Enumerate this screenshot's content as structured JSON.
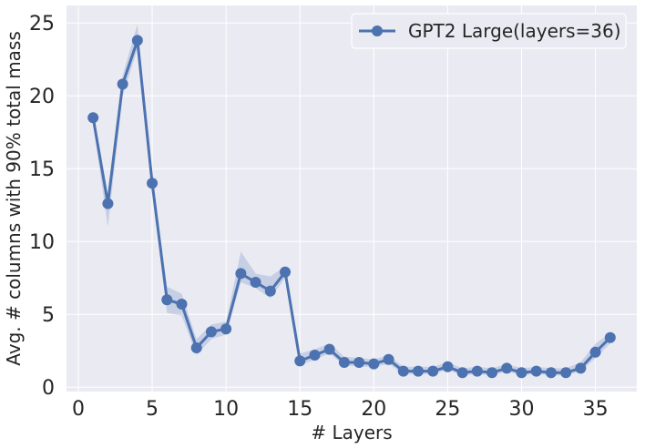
{
  "chart_data": {
    "type": "line",
    "title": "",
    "xlabel": "# Layers",
    "ylabel": "Avg. # columns with 90% total mass",
    "xlim": [
      -0.8,
      37.8
    ],
    "ylim": [
      -0.3,
      26.2
    ],
    "xticks": [
      "0",
      "5",
      "10",
      "15",
      "20",
      "25",
      "30",
      "35"
    ],
    "xtick_values": [
      0,
      5,
      10,
      15,
      20,
      25,
      30,
      35
    ],
    "yticks": [
      "0",
      "5",
      "10",
      "15",
      "20",
      "25"
    ],
    "ytick_values": [
      0,
      5,
      10,
      15,
      20,
      25
    ],
    "grid": true,
    "legend_position": "top-right",
    "background_color": "#eaeaf2",
    "series": [
      {
        "name": "GPT2 Large(layers=36)",
        "color": "#4c72b0",
        "band_color": "#4c72b0",
        "x": [
          1,
          2,
          3,
          4,
          5,
          6,
          7,
          8,
          9,
          10,
          11,
          12,
          13,
          14,
          15,
          16,
          17,
          18,
          19,
          20,
          21,
          22,
          23,
          24,
          25,
          26,
          27,
          28,
          29,
          30,
          31,
          32,
          33,
          34,
          35,
          36
        ],
        "y": [
          18.5,
          12.6,
          20.8,
          23.8,
          14.0,
          6.0,
          5.7,
          2.7,
          3.8,
          4.0,
          7.8,
          7.2,
          6.6,
          7.9,
          1.8,
          2.2,
          2.6,
          1.7,
          1.7,
          1.6,
          1.9,
          1.1,
          1.1,
          1.1,
          1.4,
          1.0,
          1.1,
          1.0,
          1.3,
          1.0,
          1.1,
          1.0,
          1.0,
          1.3,
          2.4,
          3.4
        ],
        "y_lower": [
          18.1,
          11.0,
          20.0,
          23.2,
          13.6,
          5.1,
          4.9,
          2.2,
          3.3,
          3.6,
          7.2,
          6.8,
          6.1,
          7.5,
          1.5,
          1.9,
          2.3,
          1.5,
          1.4,
          1.4,
          1.6,
          0.9,
          0.9,
          0.9,
          1.2,
          0.8,
          0.9,
          0.8,
          1.1,
          0.8,
          0.9,
          0.8,
          0.8,
          1.1,
          2.0,
          3.0
        ],
        "y_upper": [
          18.9,
          13.3,
          21.4,
          24.9,
          14.5,
          6.9,
          6.4,
          3.3,
          4.3,
          4.5,
          9.3,
          7.8,
          7.6,
          8.3,
          2.3,
          2.6,
          3.0,
          2.1,
          2.0,
          1.9,
          2.2,
          1.4,
          1.4,
          1.4,
          1.7,
          1.3,
          1.4,
          1.3,
          1.6,
          1.3,
          1.4,
          1.3,
          1.3,
          1.7,
          3.0,
          3.7
        ]
      }
    ]
  }
}
